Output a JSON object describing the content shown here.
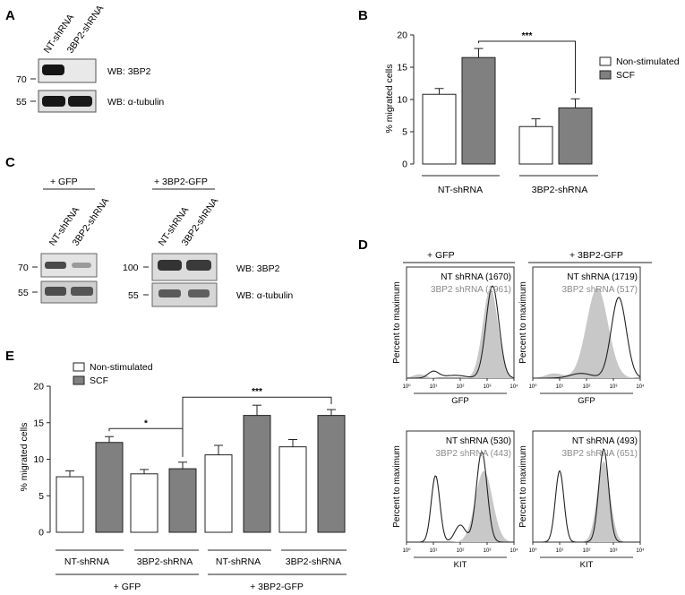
{
  "panels": {
    "A": "A",
    "B": "B",
    "C": "C",
    "D": "D",
    "E": "E"
  },
  "panel_a": {
    "lanes": [
      "NT-shRNA",
      "3BP2-shRNA"
    ],
    "markers": [
      "70",
      "55"
    ],
    "blots": [
      "WB: 3BP2",
      "WB: α-tubulin"
    ]
  },
  "panel_c": {
    "groups": [
      "+ GFP",
      "+ 3BP2-GFP"
    ],
    "lanes": [
      "NT-shRNA",
      "3BP2-shRNA",
      "NT-shRNA",
      "3BP2-shRNA"
    ],
    "markers_left": [
      "70",
      "55"
    ],
    "markers_right": [
      "100",
      "55"
    ],
    "blots": [
      "WB: 3BP2",
      "WB: α-tubulin"
    ]
  },
  "panel_d": {
    "groups": [
      "+ GFP",
      "+ 3BP2-GFP"
    ],
    "ylabel": "Percent to maximum",
    "tick_labels": [
      "10⁰",
      "10¹",
      "10²",
      "10³",
      "10⁴"
    ],
    "plots": [
      {
        "line1": "NT shRNA (1670)",
        "line2": "3BP2 shRNA (1961)",
        "xlabel": "GFP"
      },
      {
        "line1": "NT shRNA (1719)",
        "line2": "3BP2 shRNA (517)",
        "xlabel": "GFP"
      },
      {
        "line1": "NT shRNA (530)",
        "line2": "3BP2 shRNA (443)",
        "xlabel": "KIT"
      },
      {
        "line1": "NT shRNA (493)",
        "line2": "3BP2 shRNA (651)",
        "xlabel": "KIT"
      }
    ]
  },
  "colors": {
    "non_stimulated": "#ffffff",
    "scf": "#808080",
    "gray_text": "#8a8a8a",
    "shade": "#c8c8c8"
  },
  "chart_data": [
    {
      "id": "B",
      "type": "bar",
      "ylabel": "% migrated cells",
      "ylim": [
        0,
        20
      ],
      "yticks": [
        0,
        5,
        10,
        15,
        20
      ],
      "categories": [
        "NT-shRNA",
        "3BP2-shRNA"
      ],
      "legend": [
        "Non-stimulated",
        "SCF"
      ],
      "series": [
        {
          "name": "Non-stimulated",
          "values": [
            10.8,
            5.8
          ],
          "errors": [
            0.9,
            1.2
          ]
        },
        {
          "name": "SCF",
          "values": [
            16.5,
            8.7
          ],
          "errors": [
            1.4,
            1.4
          ]
        }
      ],
      "significance": [
        {
          "label": "***"
        }
      ]
    },
    {
      "id": "E",
      "type": "bar",
      "ylabel": "% migrated cells",
      "ylim": [
        0,
        20
      ],
      "yticks": [
        0,
        5,
        10,
        15,
        20
      ],
      "categories": [
        "NT-shRNA",
        "3BP2-shRNA",
        "NT-shRNA",
        "3BP2-shRNA"
      ],
      "groups": [
        "+ GFP",
        "+ 3BP2-GFP"
      ],
      "legend": [
        "Non-stimulated",
        "SCF"
      ],
      "series": [
        {
          "name": "Non-stimulated",
          "values": [
            7.6,
            8.0,
            10.6,
            11.7
          ],
          "errors": [
            0.8,
            0.6,
            1.3,
            1.0
          ]
        },
        {
          "name": "SCF",
          "values": [
            12.3,
            8.7,
            16.0,
            16.0
          ],
          "errors": [
            0.8,
            0.9,
            1.4,
            0.8
          ]
        }
      ],
      "significance": [
        {
          "label": "*"
        },
        {
          "label": "***"
        }
      ]
    }
  ]
}
